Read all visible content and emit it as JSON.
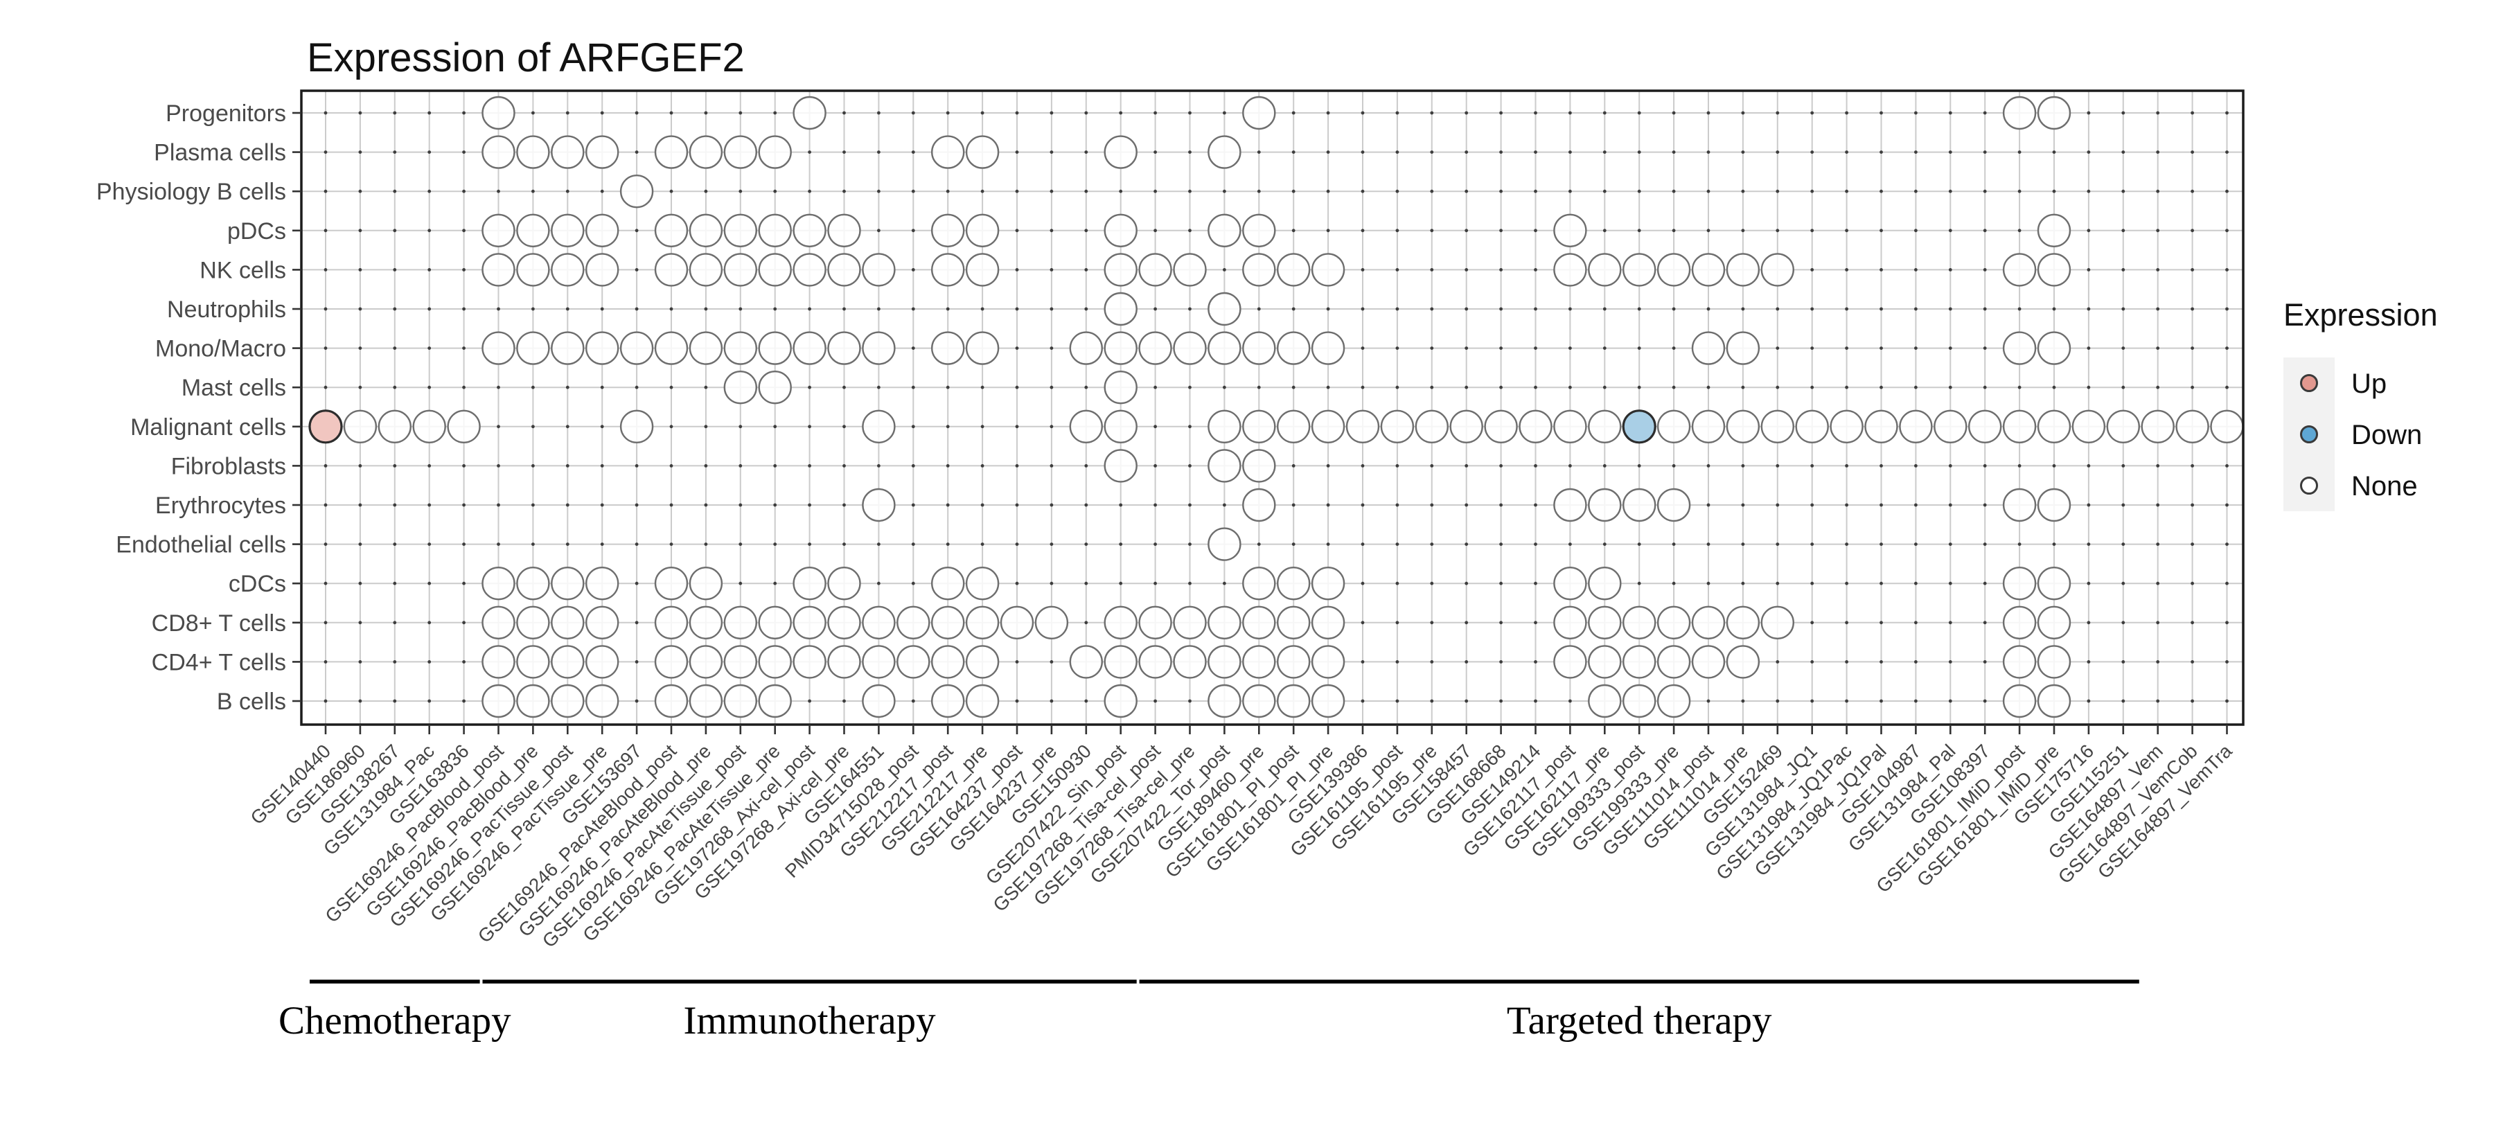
{
  "chart_data": {
    "type": "scatter",
    "title": "Expression of ARFGEF2",
    "legend": {
      "title": "Expression",
      "items": [
        {
          "label": "Up",
          "fill": "#e2988f"
        },
        {
          "label": "Down",
          "fill": "#5ea7d4"
        },
        {
          "label": "None",
          "fill": "#ffffff"
        }
      ],
      "key_bg": "#f2f2f2"
    },
    "colors": {
      "up_fill": "#f1c6c0",
      "down_fill": "#a9cfe6",
      "none_fill": "#ffffff",
      "circle_stroke": "#6e6e6e",
      "highlight_stroke": "#2d2d2d",
      "grid": "#cbcbcb",
      "dot": "#3e3e3e",
      "frame": "#1c1c1c",
      "row_label_color": "#4a4a4a",
      "col_label_color": "#454545"
    },
    "rows": [
      "Progenitors",
      "Plasma cells",
      "Physiology B cells",
      "pDCs",
      "NK cells",
      "Neutrophils",
      "Mono/Macro",
      "Mast cells",
      "Malignant cells",
      "Fibroblasts",
      "Erythrocytes",
      "Endothelial cells",
      "cDCs",
      "CD8+ T cells",
      "CD4+ T cells",
      "B cells"
    ],
    "columns": [
      "GSE140440",
      "GSE186960",
      "GSE138267",
      "GSE131984_Pac",
      "GSE163836",
      "GSE169246_PacBlood_post",
      "GSE169246_PacBlood_pre",
      "GSE169246_PacTissue_post",
      "GSE169246_PacTissue_pre",
      "GSE153697",
      "GSE169246_PacAteBlood_post",
      "GSE169246_PacAteBlood_pre",
      "GSE169246_PacAteTissue_post",
      "GSE169246_PacAteTissue_pre",
      "GSE197268_Axi-cel_post",
      "GSE197268_Axi-cel_pre",
      "GSE164551",
      "PMID34715028_post",
      "GSE212217_post",
      "GSE212217_pre",
      "GSE164237_post",
      "GSE164237_pre",
      "GSE150930",
      "GSE207422_Sin_post",
      "GSE197268_Tisa-cel_post",
      "GSE197268_Tisa-cel_pre",
      "GSE207422_Tor_post",
      "GSE189460_pre",
      "GSE161801_PI_post",
      "GSE161801_PI_pre",
      "GSE139386",
      "GSE161195_post",
      "GSE161195_pre",
      "GSE158457",
      "GSE168668",
      "GSE149214",
      "GSE162117_post",
      "GSE162117_pre",
      "GSE199333_post",
      "GSE199333_pre",
      "GSE111014_post",
      "GSE111014_pre",
      "GSE152469",
      "GSE131984_JQ1",
      "GSE131984_JQ1Pac",
      "GSE131984_JQ1Pal",
      "GSE104987",
      "GSE131984_Pal",
      "GSE108397",
      "GSE161801_IMiD_post",
      "GSE161801_IMiD_pre",
      "GSE175716",
      "GSE115251",
      "GSE164897_Vem",
      "GSE164897_VemCob",
      "GSE164897_VemTra"
    ],
    "groups": [
      {
        "label": "Chemotherapy",
        "start": 1,
        "end": 5
      },
      {
        "label": "Immunotherapy",
        "start": 6,
        "end": 24
      },
      {
        "label": "Targeted therapy",
        "start": 25,
        "end": 53
      }
    ],
    "cells": [
      {
        "row": "Progenitors",
        "cols": [
          6,
          15,
          28,
          50,
          51
        ]
      },
      {
        "row": "Plasma cells",
        "cols": [
          6,
          7,
          8,
          9,
          11,
          12,
          13,
          14,
          19,
          20,
          24,
          27
        ]
      },
      {
        "row": "Physiology B cells",
        "cols": [
          10
        ]
      },
      {
        "row": "pDCs",
        "cols": [
          6,
          7,
          8,
          9,
          11,
          12,
          13,
          14,
          15,
          16,
          19,
          20,
          24,
          27,
          28,
          37,
          51
        ]
      },
      {
        "row": "NK cells",
        "cols": [
          6,
          7,
          8,
          9,
          11,
          12,
          13,
          14,
          15,
          16,
          17,
          19,
          20,
          24,
          25,
          26,
          28,
          29,
          30,
          37,
          38,
          39,
          40,
          41,
          42,
          43,
          50,
          51
        ]
      },
      {
        "row": "Neutrophils",
        "cols": [
          24,
          27
        ]
      },
      {
        "row": "Mono/Macro",
        "cols": [
          6,
          7,
          8,
          9,
          10,
          11,
          12,
          13,
          14,
          15,
          16,
          17,
          19,
          20,
          23,
          24,
          25,
          26,
          27,
          28,
          29,
          30,
          41,
          42,
          50,
          51
        ]
      },
      {
        "row": "Mast cells",
        "cols": [
          13,
          14,
          24
        ]
      },
      {
        "row": "Malignant cells",
        "cols": [
          1,
          2,
          3,
          4,
          5,
          10,
          17,
          23,
          24,
          27,
          28,
          29,
          30,
          31,
          32,
          33,
          34,
          35,
          36,
          37,
          38,
          39,
          40,
          41,
          42,
          43,
          44,
          45,
          46,
          47,
          48,
          49,
          50,
          51,
          52,
          53,
          54,
          55,
          56
        ]
      },
      {
        "row": "Fibroblasts",
        "cols": [
          24,
          27,
          28
        ]
      },
      {
        "row": "Erythrocytes",
        "cols": [
          17,
          28,
          37,
          38,
          39,
          40,
          50,
          51
        ]
      },
      {
        "row": "Endothelial cells",
        "cols": [
          27
        ]
      },
      {
        "row": "cDCs",
        "cols": [
          6,
          7,
          8,
          9,
          11,
          12,
          15,
          16,
          19,
          20,
          28,
          29,
          30,
          37,
          38,
          50,
          51
        ]
      },
      {
        "row": "CD8+ T cells",
        "cols": [
          6,
          7,
          8,
          9,
          11,
          12,
          13,
          14,
          15,
          16,
          17,
          18,
          19,
          20,
          21,
          22,
          24,
          25,
          26,
          27,
          28,
          29,
          30,
          37,
          38,
          39,
          40,
          41,
          42,
          43,
          50,
          51
        ]
      },
      {
        "row": "CD4+ T cells",
        "cols": [
          6,
          7,
          8,
          9,
          11,
          12,
          13,
          14,
          15,
          16,
          17,
          18,
          19,
          20,
          23,
          24,
          25,
          26,
          27,
          28,
          29,
          30,
          37,
          38,
          39,
          40,
          41,
          42,
          50,
          51
        ]
      },
      {
        "row": "B cells",
        "cols": [
          6,
          7,
          8,
          9,
          11,
          12,
          13,
          14,
          17,
          19,
          20,
          24,
          27,
          28,
          29,
          30,
          38,
          39,
          40,
          50,
          51
        ]
      }
    ],
    "highlights": [
      {
        "row": "Malignant cells",
        "col": 1,
        "state": "up"
      },
      {
        "row": "Malignant cells",
        "col": 39,
        "state": "down"
      }
    ]
  }
}
